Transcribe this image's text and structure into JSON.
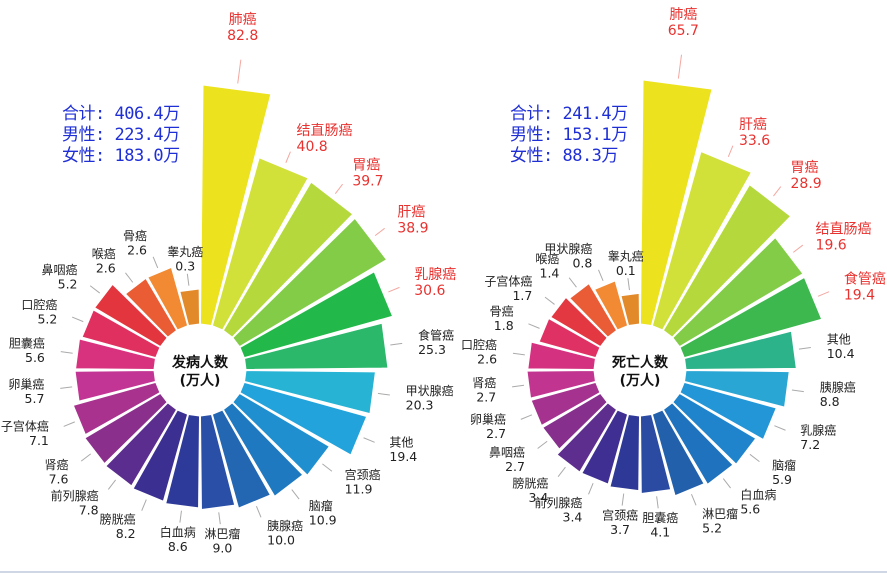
{
  "chart_data": [
    {
      "type": "polar-bar",
      "center_label": [
        "发病人数",
        "(万人)"
      ],
      "totals": [
        "合计: 406.4万",
        "男性: 223.4万",
        "女性: 183.0万"
      ],
      "categories": [
        "肺癌",
        "结直肠癌",
        "胃癌",
        "肝癌",
        "乳腺癌",
        "食管癌",
        "甲状腺癌",
        "其他",
        "宫颈癌",
        "脑瘤",
        "胰腺癌",
        "淋巴瘤",
        "白血病",
        "膀胱癌",
        "前列腺癌",
        "肾癌",
        "子宫体癌",
        "卵巢癌",
        "胆囊癌",
        "口腔癌",
        "鼻咽癌",
        "喉癌",
        "骨癌",
        "睾丸癌"
      ],
      "values": [
        82.8,
        40.8,
        39.7,
        38.9,
        30.6,
        25.3,
        20.3,
        19.4,
        11.9,
        10.9,
        10.0,
        9.0,
        8.6,
        8.2,
        7.8,
        7.6,
        7.1,
        5.7,
        5.6,
        5.2,
        5.2,
        2.6,
        2.6,
        0.3
      ],
      "value_labels": [
        "82.8",
        "40.8",
        "39.7",
        "38.9",
        "30.6",
        "25.3",
        "20.3",
        "19.4",
        "11.9",
        "10.9",
        "10.0",
        "9.0",
        "8.6",
        "8.2",
        "7.8",
        "7.6",
        "7.1",
        "5.7",
        "5.6",
        "5.2",
        "5.2",
        "2.6",
        "2.6",
        "0.3"
      ],
      "highlighted_top": 5,
      "colors": [
        "#ece21e",
        "#d2e03a",
        "#b5d93c",
        "#83cc47",
        "#23b94a",
        "#2bb86a",
        "#27b3d4",
        "#22a3db",
        "#1f8fcf",
        "#1f79c0",
        "#2366b2",
        "#2a4fa6",
        "#2e3a99",
        "#3c2f92",
        "#5a2d8e",
        "#8a2f8c",
        "#a8328d",
        "#c33594",
        "#d8327f",
        "#e03060",
        "#e2353e",
        "#ea5d34",
        "#f18a32",
        "#e28a2a"
      ]
    },
    {
      "type": "polar-bar",
      "center_label": [
        "死亡人数",
        "(万人)"
      ],
      "totals": [
        "合计: 241.4万",
        "男性: 153.1万",
        "女性: 88.3万"
      ],
      "categories": [
        "肺癌",
        "肝癌",
        "胃癌",
        "结直肠癌",
        "食管癌",
        "其他",
        "胰腺癌",
        "乳腺癌",
        "脑瘤",
        "白血病",
        "淋巴瘤",
        "胆囊癌",
        "宫颈癌",
        "前列腺癌",
        "膀胱癌",
        "鼻咽癌",
        "卵巢癌",
        "肾癌",
        "口腔癌",
        "骨癌",
        "子宫体癌",
        "喉癌",
        "甲状腺癌",
        "睾丸癌"
      ],
      "values": [
        65.7,
        33.6,
        28.9,
        19.6,
        19.4,
        10.4,
        8.8,
        7.2,
        5.9,
        5.6,
        5.2,
        4.1,
        3.7,
        3.4,
        3.4,
        2.7,
        2.7,
        2.7,
        2.6,
        1.8,
        1.7,
        1.4,
        0.8,
        0.1
      ],
      "value_labels": [
        "65.7",
        "33.6",
        "28.9",
        "19.6",
        "19.4",
        "10.4",
        "8.8",
        "7.2",
        "5.9",
        "5.6",
        "5.2",
        "4.1",
        "3.7",
        "3.4",
        "3.4",
        "2.7",
        "2.7",
        "2.7",
        "2.6",
        "1.8",
        "1.7",
        "1.4",
        "0.8",
        "0.1"
      ],
      "highlighted_top": 5,
      "colors": [
        "#ece21e",
        "#d2e03a",
        "#b5d93c",
        "#83cc47",
        "#3cb84f",
        "#2db389",
        "#2aa6d4",
        "#2296d6",
        "#1f84cb",
        "#1f72bd",
        "#2360ac",
        "#2b4ba2",
        "#2e3896",
        "#3f2f92",
        "#5d2e8e",
        "#862f8d",
        "#a5328e",
        "#c13490",
        "#d43280",
        "#df3163",
        "#e33841",
        "#ea5c35",
        "#f28a33",
        "#e28a2a"
      ]
    }
  ]
}
